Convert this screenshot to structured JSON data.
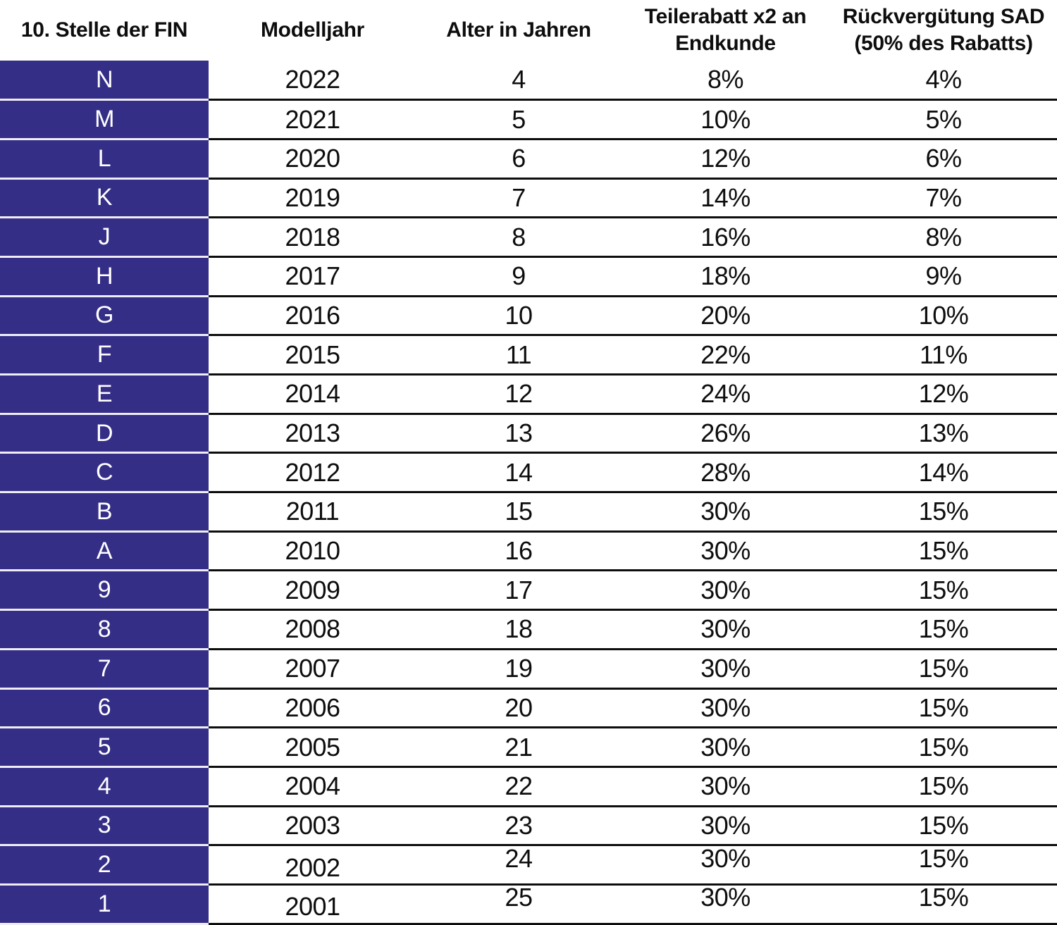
{
  "table": {
    "columns": [
      {
        "label": "10. Stelle der FIN",
        "label2": ""
      },
      {
        "label": "Modelljahr",
        "label2": ""
      },
      {
        "label": "Alter in Jahren",
        "label2": ""
      },
      {
        "label": "Teilerabatt x2 an",
        "label2": "Endkunde"
      },
      {
        "label": "Rückvergütung SAD",
        "label2": "(50% des Rabatts)"
      }
    ],
    "rows": [
      {
        "fin": "N",
        "modelljahr": "2022",
        "alter": "4",
        "teilerabatt": "8%",
        "rueckverguetung": "4%"
      },
      {
        "fin": "M",
        "modelljahr": "2021",
        "alter": "5",
        "teilerabatt": "10%",
        "rueckverguetung": "5%"
      },
      {
        "fin": "L",
        "modelljahr": "2020",
        "alter": "6",
        "teilerabatt": "12%",
        "rueckverguetung": "6%"
      },
      {
        "fin": "K",
        "modelljahr": "2019",
        "alter": "7",
        "teilerabatt": "14%",
        "rueckverguetung": "7%"
      },
      {
        "fin": "J",
        "modelljahr": "2018",
        "alter": "8",
        "teilerabatt": "16%",
        "rueckverguetung": "8%"
      },
      {
        "fin": "H",
        "modelljahr": "2017",
        "alter": "9",
        "teilerabatt": "18%",
        "rueckverguetung": "9%"
      },
      {
        "fin": "G",
        "modelljahr": "2016",
        "alter": "10",
        "teilerabatt": "20%",
        "rueckverguetung": "10%"
      },
      {
        "fin": "F",
        "modelljahr": "2015",
        "alter": "11",
        "teilerabatt": "22%",
        "rueckverguetung": "11%"
      },
      {
        "fin": "E",
        "modelljahr": "2014",
        "alter": "12",
        "teilerabatt": "24%",
        "rueckverguetung": "12%"
      },
      {
        "fin": "D",
        "modelljahr": "2013",
        "alter": "13",
        "teilerabatt": "26%",
        "rueckverguetung": "13%"
      },
      {
        "fin": "C",
        "modelljahr": "2012",
        "alter": "14",
        "teilerabatt": "28%",
        "rueckverguetung": "14%"
      },
      {
        "fin": "B",
        "modelljahr": "2011",
        "alter": "15",
        "teilerabatt": "30%",
        "rueckverguetung": "15%"
      },
      {
        "fin": "A",
        "modelljahr": "2010",
        "alter": "16",
        "teilerabatt": "30%",
        "rueckverguetung": "15%"
      },
      {
        "fin": "9",
        "modelljahr": "2009",
        "alter": "17",
        "teilerabatt": "30%",
        "rueckverguetung": "15%"
      },
      {
        "fin": "8",
        "modelljahr": "2008",
        "alter": "18",
        "teilerabatt": "30%",
        "rueckverguetung": "15%"
      },
      {
        "fin": "7",
        "modelljahr": "2007",
        "alter": "19",
        "teilerabatt": "30%",
        "rueckverguetung": "15%"
      },
      {
        "fin": "6",
        "modelljahr": "2006",
        "alter": "20",
        "teilerabatt": "30%",
        "rueckverguetung": "15%"
      },
      {
        "fin": "5",
        "modelljahr": "2005",
        "alter": "21",
        "teilerabatt": "30%",
        "rueckverguetung": "15%"
      },
      {
        "fin": "4",
        "modelljahr": "2004",
        "alter": "22",
        "teilerabatt": "30%",
        "rueckverguetung": "15%"
      },
      {
        "fin": "3",
        "modelljahr": "2003",
        "alter": "23",
        "teilerabatt": "30%",
        "rueckverguetung": "15%"
      },
      {
        "fin": "2",
        "modelljahr": "2002",
        "alter": "24",
        "teilerabatt": "30%",
        "rueckverguetung": "15%"
      },
      {
        "fin": "1",
        "modelljahr": "2001",
        "alter": "25",
        "teilerabatt": "30%",
        "rueckverguetung": "15%"
      }
    ]
  },
  "colors": {
    "fin_cell_bg": "#352e87",
    "fin_cell_text": "#ffffff",
    "fin_divider": "#efeef7",
    "row_line": "#0d0d0d"
  }
}
